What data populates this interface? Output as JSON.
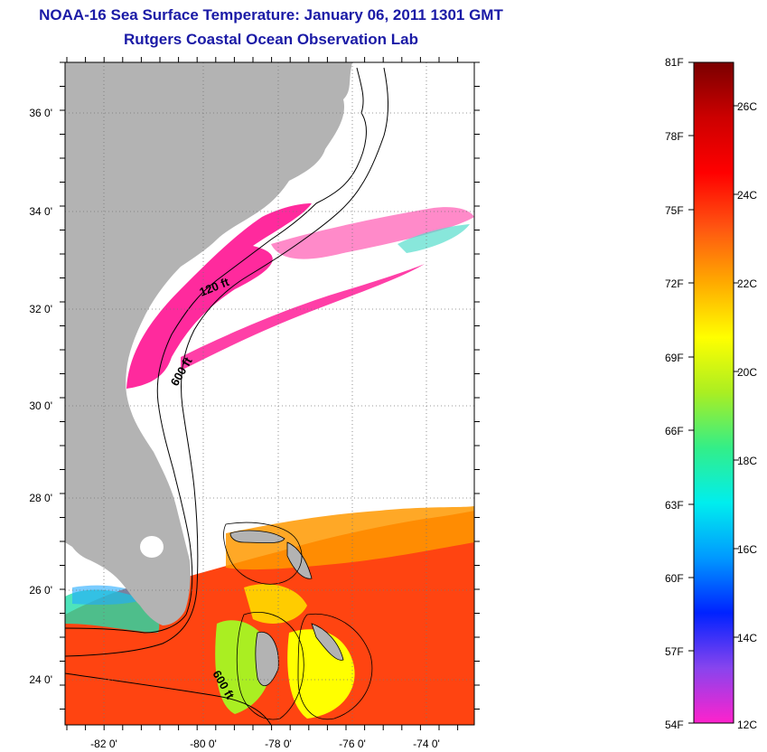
{
  "header": {
    "title": "NOAA-16 Sea Surface Temperature:  January 06, 2011 1301 GMT",
    "subtitle": "Rutgers Coastal Ocean Observation Lab"
  },
  "map": {
    "lon_ticks": [
      "-82 0'",
      "-80 0'",
      "-78 0'",
      "-76 0'",
      "-74 0'"
    ],
    "lat_ticks": [
      "36 0'",
      "34 0'",
      "32 0'",
      "30 0'",
      "28 0'",
      "26 0'",
      "24 0'"
    ],
    "contours": [
      "120 ft",
      "600 ft",
      "600 ft"
    ],
    "land_color": "#b3b3b3"
  },
  "colorbar": {
    "fahrenheit": [
      "81F",
      "78F",
      "75F",
      "72F",
      "69F",
      "66F",
      "63F",
      "60F",
      "57F",
      "54F"
    ],
    "celsius": [
      "26C",
      "24C",
      "22C",
      "20C",
      "18C",
      "16C",
      "14C",
      "12C"
    ],
    "colors": [
      "#ff22cc",
      "#8844ee",
      "#0022ff",
      "#0099ff",
      "#00eeee",
      "#33ee88",
      "#aaee22",
      "#ffff00",
      "#ffaa00",
      "#ff5511",
      "#ff0000",
      "#cc0000",
      "#7a0000"
    ]
  }
}
